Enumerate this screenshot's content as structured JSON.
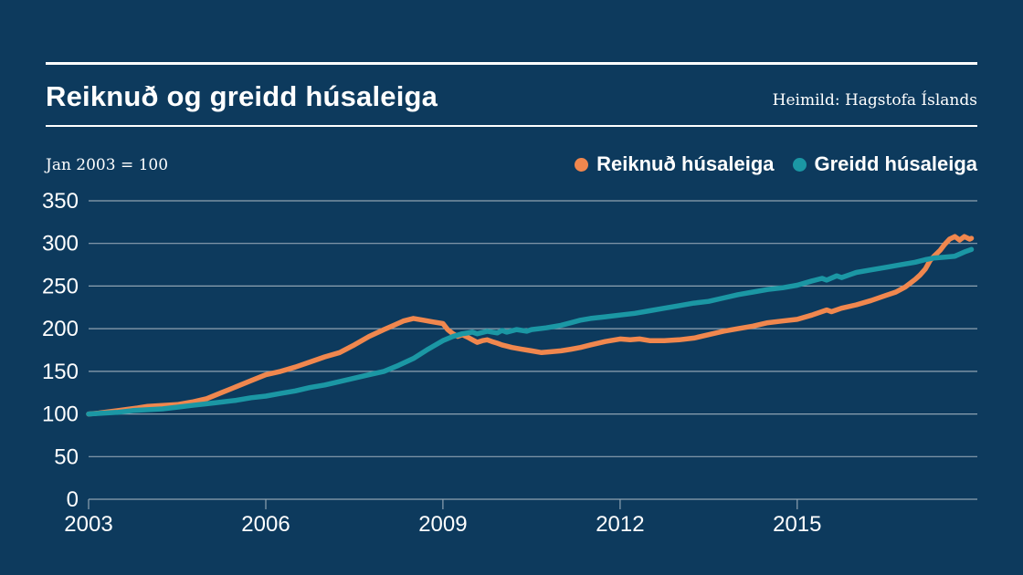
{
  "chart_data": {
    "type": "line",
    "title": "Reiknuð og greidd húsaleiga",
    "source": "Heimild: Hagstofa Íslands",
    "subtitle": "Jan 2003 = 100",
    "x_ticks": [
      2003,
      2006,
      2009,
      2012,
      2015
    ],
    "y_ticks": [
      0,
      50,
      100,
      150,
      200,
      250,
      300,
      350
    ],
    "xlim": [
      2003,
      2018.05
    ],
    "ylim": [
      0,
      350
    ],
    "grid": true,
    "legend_position": "top-right",
    "colors": {
      "background": "#0D3A5D",
      "gridline": "#8EA2B1",
      "text": "#FFFFFF",
      "orange": "#F0874E",
      "teal": "#1B97A4"
    },
    "series": [
      {
        "name": "Reiknuð húsaleiga",
        "color": "#F0874E",
        "points": [
          [
            2003.0,
            100
          ],
          [
            2003.17,
            101
          ],
          [
            2003.33,
            102.5
          ],
          [
            2003.5,
            104
          ],
          [
            2003.67,
            105.5
          ],
          [
            2003.83,
            107
          ],
          [
            2004.0,
            109
          ],
          [
            2004.25,
            110
          ],
          [
            2004.5,
            111
          ],
          [
            2004.75,
            114
          ],
          [
            2005.0,
            118
          ],
          [
            2005.25,
            125
          ],
          [
            2005.5,
            132
          ],
          [
            2005.75,
            139
          ],
          [
            2006.0,
            146
          ],
          [
            2006.25,
            150
          ],
          [
            2006.5,
            155
          ],
          [
            2006.75,
            161
          ],
          [
            2007.0,
            167
          ],
          [
            2007.25,
            172
          ],
          [
            2007.5,
            181
          ],
          [
            2007.75,
            191
          ],
          [
            2008.0,
            199
          ],
          [
            2008.17,
            204
          ],
          [
            2008.33,
            209
          ],
          [
            2008.5,
            212
          ],
          [
            2008.67,
            210
          ],
          [
            2008.83,
            208
          ],
          [
            2009.0,
            206
          ],
          [
            2009.08,
            199
          ],
          [
            2009.17,
            194
          ],
          [
            2009.25,
            191
          ],
          [
            2009.33,
            193
          ],
          [
            2009.42,
            190
          ],
          [
            2009.5,
            187
          ],
          [
            2009.58,
            184
          ],
          [
            2009.67,
            186
          ],
          [
            2009.75,
            187
          ],
          [
            2009.83,
            185
          ],
          [
            2009.92,
            183
          ],
          [
            2010.0,
            181
          ],
          [
            2010.17,
            178
          ],
          [
            2010.33,
            176
          ],
          [
            2010.5,
            174
          ],
          [
            2010.67,
            172
          ],
          [
            2010.83,
            173
          ],
          [
            2011.0,
            174
          ],
          [
            2011.17,
            176
          ],
          [
            2011.33,
            178
          ],
          [
            2011.5,
            181
          ],
          [
            2011.75,
            185
          ],
          [
            2012.0,
            188
          ],
          [
            2012.17,
            187
          ],
          [
            2012.33,
            188
          ],
          [
            2012.5,
            186
          ],
          [
            2012.75,
            186
          ],
          [
            2013.0,
            187
          ],
          [
            2013.25,
            189
          ],
          [
            2013.5,
            193
          ],
          [
            2013.75,
            197
          ],
          [
            2014.0,
            200
          ],
          [
            2014.25,
            203
          ],
          [
            2014.5,
            207
          ],
          [
            2014.75,
            209
          ],
          [
            2015.0,
            211
          ],
          [
            2015.25,
            216
          ],
          [
            2015.5,
            222
          ],
          [
            2015.58,
            220
          ],
          [
            2015.75,
            224
          ],
          [
            2016.0,
            228
          ],
          [
            2016.25,
            233
          ],
          [
            2016.5,
            239
          ],
          [
            2016.67,
            243
          ],
          [
            2016.83,
            249
          ],
          [
            2017.0,
            258
          ],
          [
            2017.08,
            263
          ],
          [
            2017.17,
            270
          ],
          [
            2017.25,
            280
          ],
          [
            2017.33,
            286
          ],
          [
            2017.42,
            292
          ],
          [
            2017.5,
            299
          ],
          [
            2017.58,
            305
          ],
          [
            2017.67,
            308
          ],
          [
            2017.75,
            304
          ],
          [
            2017.83,
            308
          ],
          [
            2017.92,
            305
          ],
          [
            2017.95,
            306
          ]
        ]
      },
      {
        "name": "Greidd húsaleiga",
        "color": "#1B97A4",
        "points": [
          [
            2003.0,
            100
          ],
          [
            2003.25,
            101
          ],
          [
            2003.5,
            102
          ],
          [
            2003.75,
            104
          ],
          [
            2004.0,
            105
          ],
          [
            2004.25,
            106
          ],
          [
            2004.5,
            108
          ],
          [
            2004.75,
            110
          ],
          [
            2005.0,
            112
          ],
          [
            2005.25,
            114
          ],
          [
            2005.5,
            116
          ],
          [
            2005.75,
            119
          ],
          [
            2006.0,
            121
          ],
          [
            2006.25,
            124
          ],
          [
            2006.5,
            127
          ],
          [
            2006.75,
            131
          ],
          [
            2007.0,
            134
          ],
          [
            2007.25,
            138
          ],
          [
            2007.5,
            142
          ],
          [
            2007.75,
            146
          ],
          [
            2008.0,
            150
          ],
          [
            2008.25,
            157
          ],
          [
            2008.5,
            165
          ],
          [
            2008.75,
            176
          ],
          [
            2009.0,
            186
          ],
          [
            2009.17,
            191
          ],
          [
            2009.33,
            194
          ],
          [
            2009.5,
            196
          ],
          [
            2009.58,
            194
          ],
          [
            2009.75,
            197
          ],
          [
            2009.92,
            195
          ],
          [
            2010.0,
            198
          ],
          [
            2010.08,
            196
          ],
          [
            2010.25,
            199
          ],
          [
            2010.42,
            197
          ],
          [
            2010.5,
            199
          ],
          [
            2010.75,
            201
          ],
          [
            2011.0,
            204
          ],
          [
            2011.17,
            207
          ],
          [
            2011.33,
            210
          ],
          [
            2011.5,
            212
          ],
          [
            2011.75,
            214
          ],
          [
            2012.0,
            216
          ],
          [
            2012.25,
            218
          ],
          [
            2012.5,
            221
          ],
          [
            2012.75,
            224
          ],
          [
            2013.0,
            227
          ],
          [
            2013.25,
            230
          ],
          [
            2013.5,
            232
          ],
          [
            2013.75,
            236
          ],
          [
            2014.0,
            240
          ],
          [
            2014.25,
            243
          ],
          [
            2014.5,
            246
          ],
          [
            2014.75,
            248
          ],
          [
            2015.0,
            251
          ],
          [
            2015.25,
            256
          ],
          [
            2015.42,
            259
          ],
          [
            2015.5,
            257
          ],
          [
            2015.67,
            262
          ],
          [
            2015.75,
            260
          ],
          [
            2015.92,
            264
          ],
          [
            2016.0,
            266
          ],
          [
            2016.25,
            269
          ],
          [
            2016.5,
            272
          ],
          [
            2016.75,
            275
          ],
          [
            2017.0,
            278
          ],
          [
            2017.17,
            281
          ],
          [
            2017.33,
            283
          ],
          [
            2017.5,
            284
          ],
          [
            2017.67,
            285
          ],
          [
            2017.83,
            290
          ],
          [
            2017.95,
            293
          ]
        ]
      }
    ]
  }
}
